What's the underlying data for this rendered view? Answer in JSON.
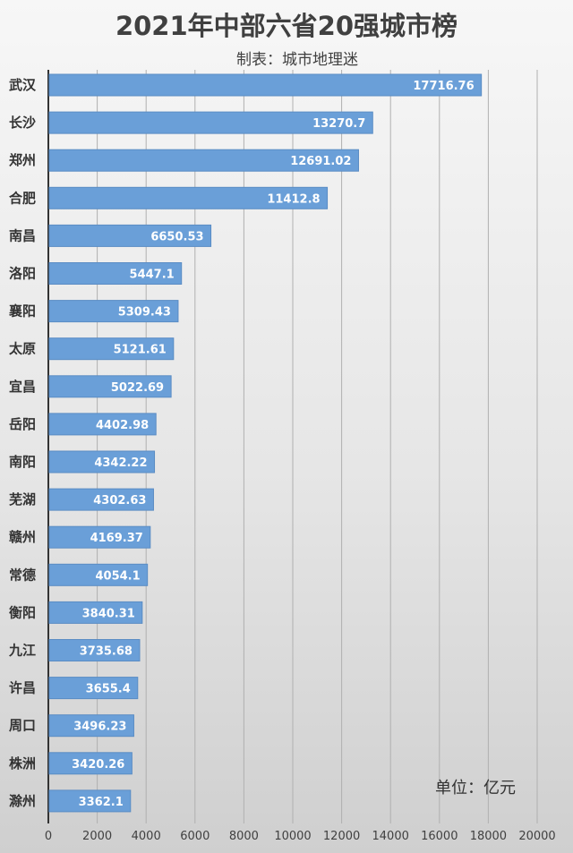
{
  "chart_data": {
    "type": "bar",
    "orientation": "horizontal",
    "title": "2021年中部六省20强城市榜",
    "subtitle": "制表：城市地理迷",
    "unit_note": "单位：亿元",
    "categories": [
      "武汉",
      "长沙",
      "郑州",
      "合肥",
      "南昌",
      "洛阳",
      "襄阳",
      "太原",
      "宜昌",
      "岳阳",
      "南阳",
      "芜湖",
      "赣州",
      "常德",
      "衡阳",
      "九江",
      "许昌",
      "周口",
      "株洲",
      "滁州"
    ],
    "values": [
      17716.76,
      13270.7,
      12691.02,
      11412.8,
      6650.53,
      5447.1,
      5309.43,
      5121.61,
      5022.69,
      4402.98,
      4342.22,
      4302.63,
      4169.37,
      4054.1,
      3840.31,
      3735.68,
      3655.4,
      3496.23,
      3420.26,
      3362.1
    ],
    "value_labels": [
      "17716.76",
      "13270.7",
      "12691.02",
      "11412.8",
      "6650.53",
      "5447.1",
      "5309.43",
      "5121.61",
      "5022.69",
      "4402.98",
      "4342.22",
      "4302.63",
      "4169.37",
      "4054.1",
      "3840.31",
      "3735.68",
      "3655.4",
      "3496.23",
      "3420.26",
      "3362.1"
    ],
    "xlim": [
      0,
      20000
    ],
    "x_ticks": [
      "0",
      "2000",
      "4000",
      "6000",
      "8000",
      "10000",
      "12000",
      "14000",
      "16000",
      "18000",
      "20000"
    ],
    "grid": "vertical",
    "bar_color": "#6a9fd8",
    "bar_border_color": "#5a8cc4",
    "label_color": "#ffffff"
  }
}
